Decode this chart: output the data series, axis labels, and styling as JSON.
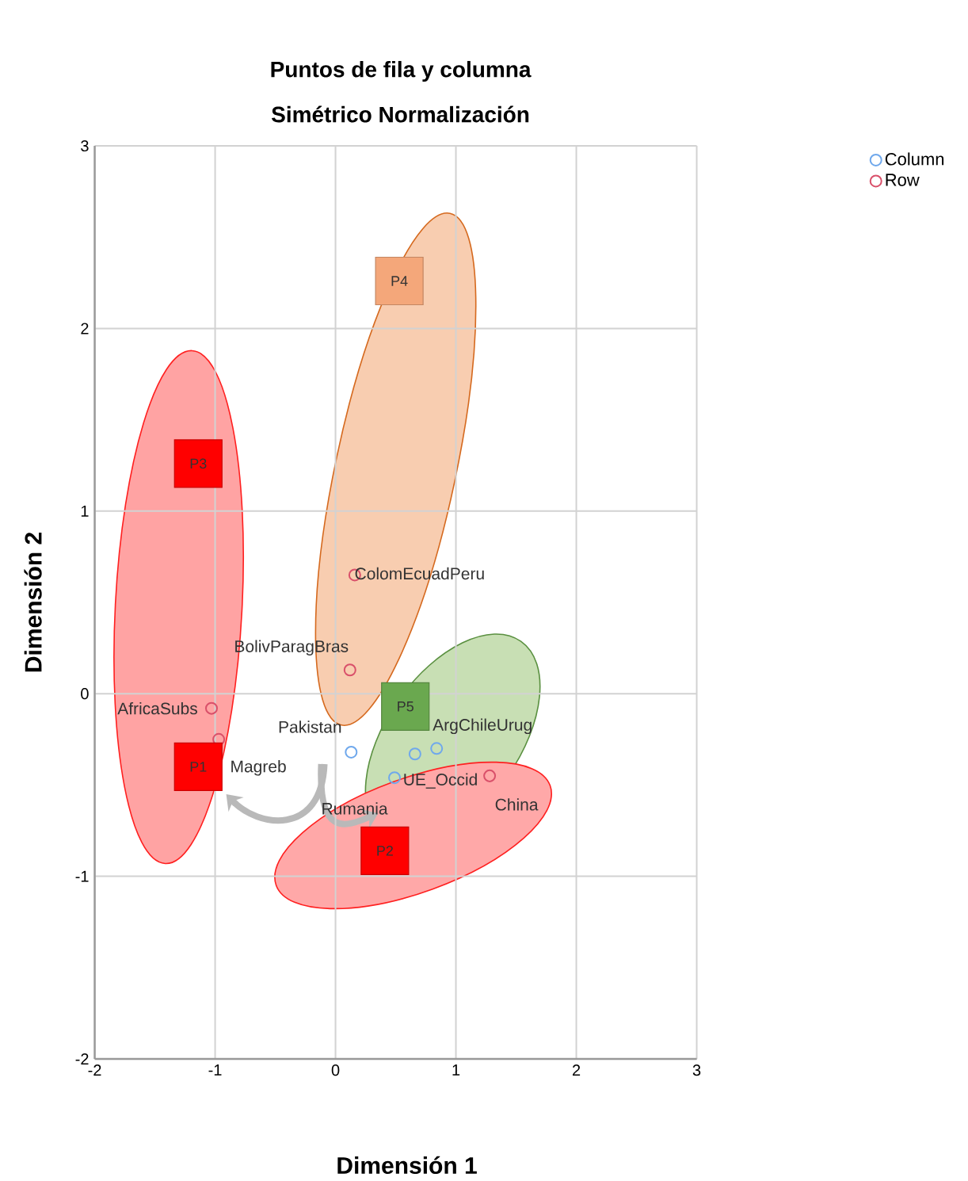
{
  "chart_data": {
    "type": "scatter",
    "title": "Puntos de fila y columna",
    "subtitle": "Simétrico Normalización",
    "xlabel": "Dimensión 1",
    "ylabel": "Dimensión 2",
    "xlim": [
      -2,
      3
    ],
    "ylim": [
      -2,
      3
    ],
    "xticks": [
      -2,
      -1,
      0,
      1,
      2,
      3
    ],
    "yticks": [
      -2,
      -1,
      0,
      1,
      2,
      3
    ],
    "grid": true,
    "legend": "top right",
    "marker": "circle",
    "series": [
      {
        "name": "Column",
        "color": "#6fa8ec",
        "x": [
          0.13,
          0.66,
          0.84,
          0.49
        ],
        "values": [
          -0.32,
          -0.33,
          -0.3,
          -0.46
        ],
        "value_labels": [
          "Pakistan",
          null,
          "ArgChileUrug",
          "UE_Occid"
        ]
      },
      {
        "name": "Row",
        "color": "#d9506a",
        "x": [
          -1.03,
          -0.97,
          0.12,
          0.16,
          1.28
        ],
        "values": [
          -0.08,
          -0.25,
          0.13,
          0.65,
          -0.45
        ],
        "value_labels": [
          "AfricaSubs",
          "Magreb",
          "BolivParagBras",
          "ColomEcuadPeru",
          "China"
        ]
      },
      {
        "type": "scatter",
        "marker": "square",
        "x": [
          -1.14,
          0.41,
          -1.14,
          0.53,
          0.58
        ],
        "values": [
          -0.4,
          -0.86,
          1.26,
          2.26,
          -0.07
        ],
        "colors": [
          "#ff0000",
          "#ff0000",
          "#ff0000",
          "#f4a77a",
          "#6aa84f"
        ],
        "value_labels": [
          "P1",
          "P2",
          "P3",
          "P4",
          "P5"
        ]
      }
    ],
    "annotations": [
      "Rumania"
    ]
  }
}
